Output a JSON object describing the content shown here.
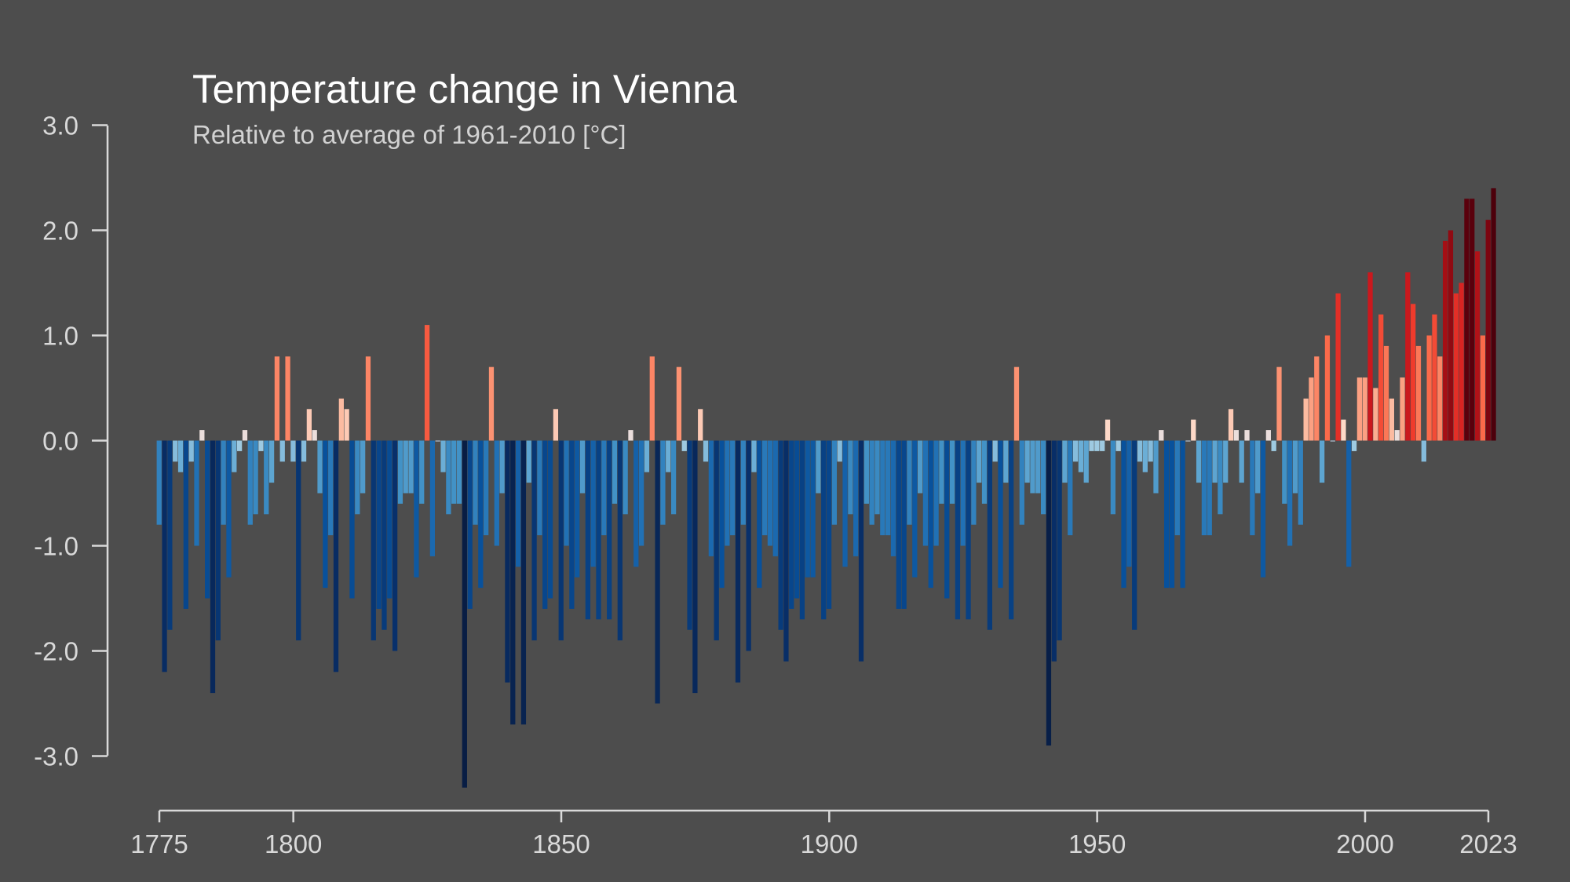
{
  "chart_data": {
    "type": "bar",
    "title": "Temperature change in Vienna",
    "subtitle": "Relative to average of 1961-2010  [°C]",
    "xlabel": "",
    "ylabel": "",
    "xlim": [
      1775,
      2023
    ],
    "ylim": [
      -3.0,
      3.0
    ],
    "x_ticks": [
      1775,
      1800,
      1850,
      1900,
      1950,
      2000,
      2023
    ],
    "y_ticks": [
      3.0,
      2.0,
      1.0,
      0.0,
      -1.0,
      -2.0,
      -3.0
    ],
    "y_tick_labels": [
      "3.0",
      "2.0",
      "1.0",
      "0.0",
      "-1.0",
      "-2.0",
      "-3.0"
    ],
    "grid": false,
    "color_scale": "blue-to-red diverging (warming stripes)",
    "colors": {
      "background": "#4d4d4d",
      "axis": "#d9d9d9",
      "title": "#ffffff",
      "subtitle": "#d2d2d2"
    },
    "years_start": 1775,
    "values": [
      -0.8,
      -2.2,
      -1.8,
      -0.2,
      -0.3,
      -1.6,
      -0.2,
      -1.0,
      0.1,
      -1.5,
      -2.4,
      -1.9,
      -0.8,
      -1.3,
      -0.3,
      -0.1,
      0.1,
      -0.8,
      -0.7,
      -0.1,
      -0.7,
      -0.4,
      0.8,
      -0.2,
      0.8,
      -0.2,
      -1.9,
      -0.2,
      0.3,
      0.1,
      -0.5,
      -1.4,
      -0.9,
      -2.2,
      0.4,
      0.3,
      -1.5,
      -0.7,
      -0.5,
      0.8,
      -1.9,
      -1.6,
      -1.8,
      -1.5,
      -2.0,
      -0.6,
      -0.5,
      -0.5,
      -1.3,
      -0.6,
      1.1,
      -1.1,
      0.0,
      -0.3,
      -0.7,
      -0.6,
      -0.6,
      -3.3,
      -1.6,
      -0.8,
      -1.4,
      -0.9,
      0.7,
      -1.0,
      -0.5,
      -2.3,
      -2.7,
      -1.2,
      -2.7,
      -0.4,
      -1.9,
      -0.9,
      -1.6,
      -1.5,
      0.3,
      -1.9,
      -1.0,
      -1.6,
      -1.3,
      -0.5,
      -1.7,
      -1.2,
      -1.7,
      -0.9,
      -1.7,
      -0.6,
      -1.9,
      -0.7,
      0.1,
      -1.2,
      -1.0,
      -0.3,
      0.8,
      -2.5,
      -0.8,
      -0.3,
      -0.7,
      0.7,
      -0.1,
      -1.8,
      -2.4,
      0.3,
      -0.2,
      -1.1,
      -1.9,
      -1.4,
      -1.0,
      -0.9,
      -2.3,
      -0.8,
      -2.0,
      -0.3,
      -1.4,
      -0.9,
      -1.0,
      -1.1,
      -1.8,
      -2.1,
      -1.6,
      -1.5,
      -1.7,
      -1.3,
      -1.3,
      -0.5,
      -1.7,
      -1.6,
      -0.8,
      -0.2,
      -1.2,
      -0.7,
      -1.1,
      -2.1,
      -0.6,
      -0.8,
      -0.7,
      -0.9,
      -0.9,
      -1.1,
      -1.6,
      -1.6,
      -0.8,
      -1.3,
      -0.5,
      -1.0,
      -1.4,
      -1.0,
      -0.6,
      -1.5,
      -0.6,
      -1.7,
      -1.0,
      -1.7,
      -0.8,
      -0.4,
      -0.6,
      -1.8,
      -0.2,
      -1.4,
      -0.4,
      -1.7,
      0.7,
      -0.8,
      -0.4,
      -0.5,
      -0.5,
      -0.7,
      -2.9,
      -2.1,
      -1.9,
      -0.4,
      -0.9,
      -0.2,
      -0.3,
      -0.4,
      -0.1,
      -0.1,
      -0.1,
      0.2,
      -0.7,
      -0.1,
      -1.4,
      -1.2,
      -1.8,
      -0.2,
      -0.3,
      -0.2,
      -0.5,
      0.1,
      -1.4,
      -1.4,
      -0.9,
      -1.4,
      0.0,
      0.2,
      -0.4,
      -0.9,
      -0.9,
      -0.4,
      -0.7,
      -0.4,
      0.3,
      0.1,
      -0.4,
      0.1,
      -0.9,
      -0.5,
      -1.3,
      0.1,
      -0.1,
      0.7,
      -0.6,
      -1.0,
      -0.5,
      -0.8,
      0.4,
      0.6,
      0.8,
      -0.4,
      1.0,
      0.0,
      1.4,
      0.2,
      -1.2,
      -0.1,
      0.6,
      0.6,
      1.6,
      0.5,
      1.2,
      0.9,
      0.4,
      0.1,
      0.6,
      1.6,
      1.3,
      0.9,
      -0.2,
      1.0,
      1.2,
      0.8,
      1.9,
      2.0,
      1.4,
      1.5,
      2.3,
      2.3,
      1.8,
      1.0,
      2.1,
      2.4
    ]
  }
}
